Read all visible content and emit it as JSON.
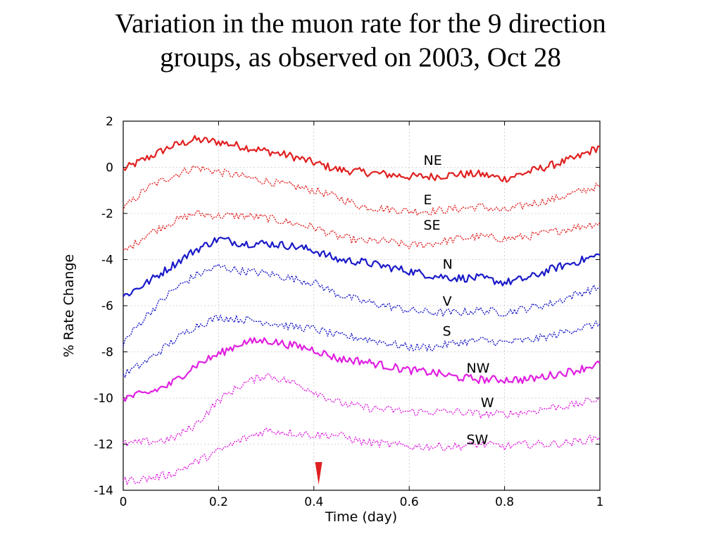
{
  "title": {
    "line1": "Variation in the muon rate for the 9 direction",
    "line2": "groups, as observed  on 2003, Oct 28"
  },
  "chart_data": {
    "type": "line",
    "xlabel": "Time (day)",
    "ylabel": "% Rate Change",
    "xlim": [
      0,
      1
    ],
    "ylim": [
      -14,
      2
    ],
    "xticks": [
      "0",
      "0.2",
      "0.4",
      "0.6",
      "0.8",
      "1"
    ],
    "yticks": [
      "2",
      "0",
      "-2",
      "-4",
      "-6",
      "-8",
      "-10",
      "-12",
      "-14"
    ],
    "grid": true,
    "x": [
      0,
      0.05,
      0.1,
      0.15,
      0.2,
      0.25,
      0.3,
      0.35,
      0.4,
      0.45,
      0.5,
      0.55,
      0.6,
      0.65,
      0.7,
      0.75,
      0.8,
      0.85,
      0.9,
      0.95,
      1
    ],
    "series": [
      {
        "name": "NE",
        "color": "#e02020",
        "style": "solid",
        "label_at": [
          0.63,
          0.1
        ],
        "values": [
          -0.1,
          0.4,
          0.9,
          1.2,
          1.1,
          0.9,
          0.7,
          0.5,
          0.2,
          -0.1,
          -0.2,
          -0.3,
          -0.4,
          -0.4,
          -0.3,
          -0.3,
          -0.5,
          -0.2,
          0.1,
          0.4,
          0.9
        ]
      },
      {
        "name": "E",
        "color": "#e02020",
        "style": "dotted",
        "label_at": [
          0.63,
          -1.6
        ],
        "values": [
          -1.8,
          -0.9,
          -0.4,
          0.0,
          -0.2,
          -0.4,
          -0.6,
          -0.8,
          -1.0,
          -1.3,
          -1.7,
          -1.8,
          -1.9,
          -1.9,
          -1.8,
          -1.7,
          -1.9,
          -1.6,
          -1.4,
          -1.1,
          -0.8
        ]
      },
      {
        "name": "SE",
        "color": "#e02020",
        "style": "dotted",
        "label_at": [
          0.63,
          -2.7
        ],
        "values": [
          -3.7,
          -2.9,
          -2.4,
          -2.0,
          -2.1,
          -2.1,
          -2.2,
          -2.4,
          -2.6,
          -3.0,
          -3.2,
          -3.2,
          -3.4,
          -3.3,
          -3.1,
          -3.0,
          -3.1,
          -3.0,
          -2.8,
          -2.6,
          -2.4
        ]
      },
      {
        "name": "N",
        "color": "#1a1ac8",
        "style": "solid",
        "label_at": [
          0.67,
          -4.4
        ],
        "values": [
          -5.6,
          -5.0,
          -4.3,
          -3.6,
          -3.1,
          -3.3,
          -3.3,
          -3.4,
          -3.6,
          -4.0,
          -4.1,
          -4.3,
          -4.5,
          -4.7,
          -4.8,
          -4.8,
          -5.0,
          -4.8,
          -4.4,
          -4.1,
          -3.8
        ]
      },
      {
        "name": "V",
        "color": "#1a1ac8",
        "style": "dotted",
        "label_at": [
          0.67,
          -6.0
        ],
        "values": [
          -7.6,
          -6.4,
          -5.4,
          -4.7,
          -4.3,
          -4.5,
          -4.6,
          -4.8,
          -5.0,
          -5.5,
          -5.8,
          -6.0,
          -6.2,
          -6.3,
          -6.3,
          -6.2,
          -6.3,
          -6.1,
          -5.9,
          -5.5,
          -5.2
        ]
      },
      {
        "name": "S",
        "color": "#1a1ac8",
        "style": "dotted",
        "label_at": [
          0.67,
          -7.3
        ],
        "values": [
          -9.0,
          -8.4,
          -7.6,
          -6.9,
          -6.5,
          -6.6,
          -6.7,
          -6.9,
          -7.0,
          -7.3,
          -7.4,
          -7.6,
          -7.8,
          -7.8,
          -7.6,
          -7.5,
          -7.6,
          -7.5,
          -7.3,
          -7.0,
          -6.8
        ]
      },
      {
        "name": "NW",
        "color": "#e020e0",
        "style": "solid",
        "label_at": [
          0.72,
          -8.9
        ],
        "values": [
          -10.0,
          -9.8,
          -9.4,
          -8.6,
          -8.1,
          -7.6,
          -7.5,
          -7.7,
          -7.9,
          -8.3,
          -8.4,
          -8.6,
          -8.8,
          -8.9,
          -9.1,
          -9.2,
          -9.2,
          -9.2,
          -9.0,
          -8.8,
          -8.5
        ]
      },
      {
        "name": "W",
        "color": "#e020e0",
        "style": "dotted",
        "label_at": [
          0.75,
          -10.4
        ],
        "values": [
          -12.0,
          -11.9,
          -11.8,
          -11.2,
          -10.1,
          -9.4,
          -9.0,
          -9.3,
          -9.7,
          -10.2,
          -10.4,
          -10.5,
          -10.6,
          -10.6,
          -10.6,
          -10.7,
          -10.7,
          -10.6,
          -10.4,
          -10.3,
          -10.0
        ]
      },
      {
        "name": "SW",
        "color": "#e020e0",
        "style": "dotted",
        "label_at": [
          0.72,
          -12.0
        ],
        "values": [
          -13.6,
          -13.5,
          -13.3,
          -12.8,
          -12.3,
          -11.8,
          -11.4,
          -11.5,
          -11.6,
          -11.6,
          -11.9,
          -12.0,
          -12.1,
          -12.1,
          -12.1,
          -12.0,
          -12.1,
          -12.0,
          -12.0,
          -11.9,
          -11.7
        ]
      }
    ],
    "marker": {
      "x": 0.41,
      "color": "#e02020"
    }
  }
}
